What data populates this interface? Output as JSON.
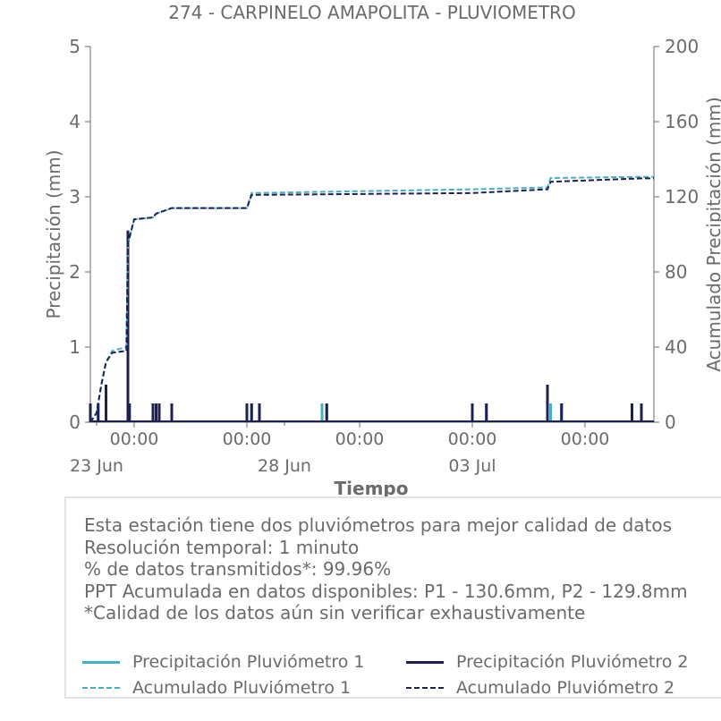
{
  "colors": {
    "p1": "#45b0c4",
    "p2": "#1c2151",
    "axis": "#6b6b6b"
  },
  "chart_data": {
    "type": "line",
    "title": "274 - CARPINELO AMAPOLITA - PLUVIOMETRO",
    "xlabel": "Tiempo",
    "ylabel": "Precipitación (mm)",
    "y2label": "Acumulado Precipitación (mm)",
    "xlim": [
      "2023-06-22 20:00",
      "2023-07-07 20:00"
    ],
    "ylim": [
      0,
      5
    ],
    "y2lim": [
      0,
      200
    ],
    "yticks": [
      0,
      1,
      2,
      3,
      4,
      5
    ],
    "y2ticks": [
      0,
      40,
      80,
      120,
      160,
      200
    ],
    "x_ticks": [
      {
        "t": "2023-06-24 00:00",
        "label": "00:00"
      },
      {
        "t": "2023-06-27 00:00",
        "label": "00:00"
      },
      {
        "t": "2023-06-30 00:00",
        "label": "00:00"
      },
      {
        "t": "2023-07-03 00:00",
        "label": "00:00"
      },
      {
        "t": "2023-07-06 00:00",
        "label": "00:00"
      }
    ],
    "x_date_labels": [
      {
        "t": "2023-06-23 00:00",
        "label": "23 Jun"
      },
      {
        "t": "2023-06-28 00:00",
        "label": "28 Jun"
      },
      {
        "t": "2023-07-03 00:00",
        "label": "03 Jul"
      }
    ],
    "grid": false,
    "series": [
      {
        "name": "Precipitación Pluviómetro 1",
        "axis": "left",
        "style": "solid",
        "points": [
          [
            "2023-06-22 20:00",
            0.25
          ],
          [
            "2023-06-23 01:00",
            0.25
          ],
          [
            "2023-06-23 06:00",
            0.5
          ],
          [
            "2023-06-23 20:00",
            2.55
          ],
          [
            "2023-06-23 21:00",
            0.25
          ],
          [
            "2023-06-24 12:00",
            0.25
          ],
          [
            "2023-06-24 14:00",
            0.25
          ],
          [
            "2023-06-24 16:00",
            0.25
          ],
          [
            "2023-06-25 00:00",
            0.25
          ],
          [
            "2023-06-26 24:00",
            0.25
          ],
          [
            "2023-06-27 03:00",
            0.25
          ],
          [
            "2023-06-27 08:00",
            0.25
          ],
          [
            "2023-06-29 00:00",
            0.25
          ],
          [
            "2023-06-29 03:00",
            0.25
          ],
          [
            "2023-07-03 00:00",
            0.25
          ],
          [
            "2023-07-03 09:00",
            0.25
          ],
          [
            "2023-07-05 00:00",
            0.5
          ],
          [
            "2023-07-05 02:00",
            0.25
          ],
          [
            "2023-07-05 09:00",
            0.25
          ],
          [
            "2023-07-07 06:00",
            0.25
          ],
          [
            "2023-07-07 12:00",
            0.25
          ]
        ]
      },
      {
        "name": "Precipitación Pluviómetro 2",
        "axis": "left",
        "style": "solid",
        "points": [
          [
            "2023-06-22 20:00",
            0.25
          ],
          [
            "2023-06-23 01:00",
            0.25
          ],
          [
            "2023-06-23 06:00",
            0.5
          ],
          [
            "2023-06-23 20:00",
            2.55
          ],
          [
            "2023-06-23 21:00",
            0.25
          ],
          [
            "2023-06-24 12:00",
            0.25
          ],
          [
            "2023-06-24 14:00",
            0.25
          ],
          [
            "2023-06-24 16:00",
            0.25
          ],
          [
            "2023-06-25 00:00",
            0.25
          ],
          [
            "2023-06-26 24:00",
            0.25
          ],
          [
            "2023-06-27 03:00",
            0.25
          ],
          [
            "2023-06-27 08:00",
            0.25
          ],
          [
            "2023-06-29 03:00",
            0.25
          ],
          [
            "2023-07-03 00:00",
            0.25
          ],
          [
            "2023-07-03 09:00",
            0.25
          ],
          [
            "2023-07-05 00:00",
            0.5
          ],
          [
            "2023-07-05 09:00",
            0.25
          ],
          [
            "2023-07-07 06:00",
            0.25
          ],
          [
            "2023-07-07 12:00",
            0.25
          ]
        ]
      },
      {
        "name": "Acumulado Pluviómetro 1",
        "axis": "right",
        "style": "dashed",
        "points": [
          [
            "2023-06-22 20:00",
            0
          ],
          [
            "2023-06-23 00:00",
            5
          ],
          [
            "2023-06-23 03:00",
            20
          ],
          [
            "2023-06-23 06:00",
            32
          ],
          [
            "2023-06-23 10:00",
            38
          ],
          [
            "2023-06-23 19:00",
            40
          ],
          [
            "2023-06-23 20:00",
            95
          ],
          [
            "2023-06-24 00:00",
            108
          ],
          [
            "2023-06-24 12:00",
            109
          ],
          [
            "2023-06-24 14:00",
            111
          ],
          [
            "2023-06-25 00:00",
            114
          ],
          [
            "2023-06-26 24:00",
            114
          ],
          [
            "2023-06-27 03:00",
            122
          ],
          [
            "2023-07-03 00:00",
            124
          ],
          [
            "2023-07-05 00:00",
            125
          ],
          [
            "2023-07-05 02:00",
            130
          ],
          [
            "2023-07-07 12:00",
            130.6
          ]
        ]
      },
      {
        "name": "Acumulado Pluviómetro 2",
        "axis": "right",
        "style": "dashed",
        "points": [
          [
            "2023-06-22 20:00",
            0
          ],
          [
            "2023-06-23 00:00",
            5
          ],
          [
            "2023-06-23 03:00",
            20
          ],
          [
            "2023-06-23 06:00",
            32
          ],
          [
            "2023-06-23 10:00",
            37
          ],
          [
            "2023-06-23 19:00",
            38
          ],
          [
            "2023-06-23 20:00",
            95
          ],
          [
            "2023-06-24 00:00",
            108
          ],
          [
            "2023-06-24 12:00",
            109
          ],
          [
            "2023-06-24 14:00",
            111
          ],
          [
            "2023-06-25 00:00",
            114
          ],
          [
            "2023-06-26 24:00",
            114
          ],
          [
            "2023-06-27 03:00",
            121
          ],
          [
            "2023-07-03 00:00",
            122
          ],
          [
            "2023-07-05 00:00",
            124
          ],
          [
            "2023-07-05 02:00",
            128
          ],
          [
            "2023-07-07 12:00",
            129.8
          ]
        ]
      }
    ]
  },
  "info": {
    "lines": [
      "Esta estación tiene dos pluviómetros para mejor calidad de datos",
      "Resolución temporal: 1 minuto",
      "% de datos transmitidos*: 99.96%",
      "PPT Acumulada en datos disponibles: P1 - 130.6mm, P2 - 129.8mm",
      "*Calidad de los datos aún sin verificar exhaustivamente"
    ]
  },
  "legend": {
    "p1_precip": "Precipitación Pluviómetro 1",
    "p2_precip": "Precipitación Pluviómetro 2",
    "p1_acum": "Acumulado Pluviómetro 1",
    "p2_acum": "Acumulado Pluviómetro 2"
  }
}
